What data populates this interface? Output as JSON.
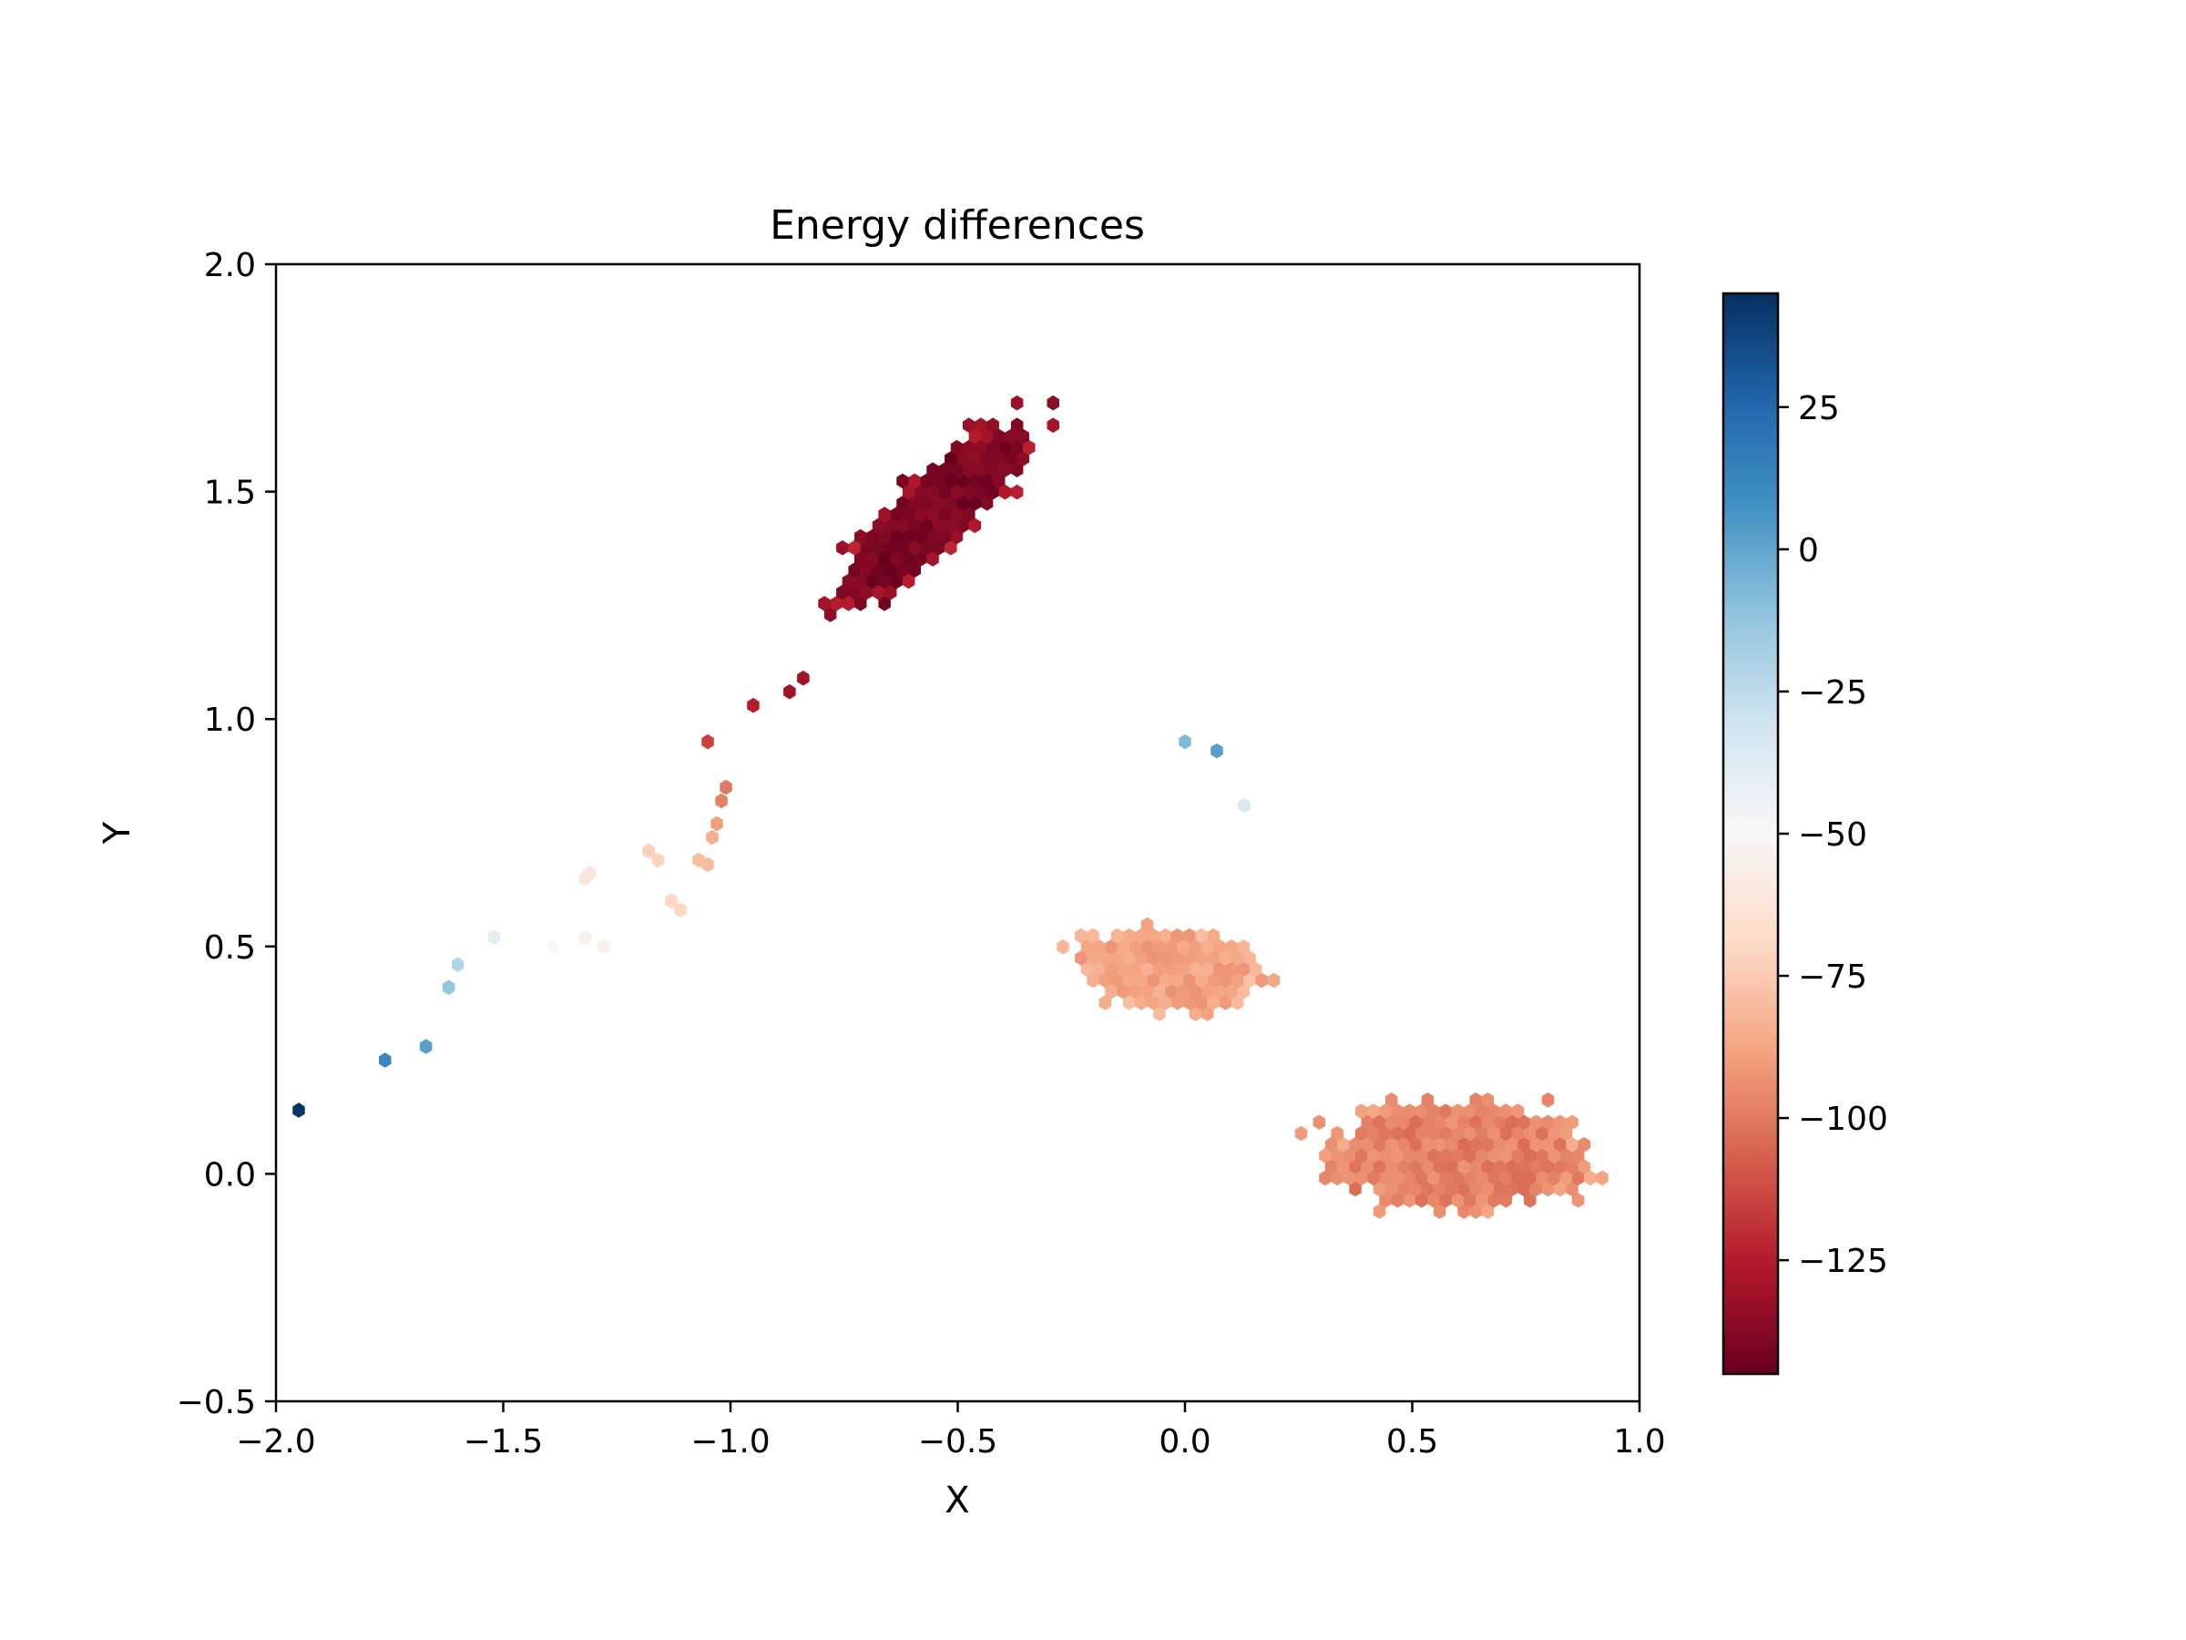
{
  "chart_data": {
    "type": "hexbin",
    "title": "Energy differences",
    "xlabel": "X",
    "ylabel": "Y",
    "xlim": [
      -2.0,
      1.0
    ],
    "ylim": [
      -0.5,
      2.0
    ],
    "xticks": [
      "−2.0",
      "−1.5",
      "−1.0",
      "−0.5",
      "0.0",
      "0.5",
      "1.0"
    ],
    "yticks": [
      "−0.5",
      "0.0",
      "0.5",
      "1.0",
      "1.5",
      "2.0"
    ],
    "colorbar": {
      "colormap": "RdBu",
      "vmin": -145,
      "vmax": 45,
      "ticks": [
        "25",
        "0",
        "−25",
        "−50",
        "−75",
        "−100",
        "−125"
      ],
      "tick_values": [
        25,
        0,
        -25,
        -50,
        -75,
        -100,
        -125
      ]
    },
    "clusters": [
      {
        "name": "upper-left",
        "center": [
          -0.55,
          1.45
        ],
        "value": -138
      },
      {
        "name": "middle",
        "center": [
          -0.05,
          0.45
        ],
        "value": -90
      },
      {
        "name": "lower-right",
        "center": [
          0.6,
          0.05
        ],
        "value": -97
      }
    ],
    "points": [
      {
        "x": -1.95,
        "y": 0.14,
        "v": 43
      },
      {
        "x": -1.76,
        "y": 0.25,
        "v": 12
      },
      {
        "x": -1.67,
        "y": 0.28,
        "v": 2
      },
      {
        "x": -1.62,
        "y": 0.41,
        "v": -12
      },
      {
        "x": -1.6,
        "y": 0.46,
        "v": -22
      },
      {
        "x": -1.52,
        "y": 0.52,
        "v": -40
      },
      {
        "x": -1.39,
        "y": 0.5,
        "v": -50
      },
      {
        "x": -1.32,
        "y": 0.52,
        "v": -55
      },
      {
        "x": -1.28,
        "y": 0.5,
        "v": -55
      },
      {
        "x": -1.32,
        "y": 0.65,
        "v": -62
      },
      {
        "x": -1.31,
        "y": 0.66,
        "v": -62
      },
      {
        "x": -1.18,
        "y": 0.71,
        "v": -72
      },
      {
        "x": -1.16,
        "y": 0.69,
        "v": -72
      },
      {
        "x": -1.13,
        "y": 0.6,
        "v": -70
      },
      {
        "x": -1.11,
        "y": 0.58,
        "v": -70
      },
      {
        "x": -1.07,
        "y": 0.69,
        "v": -80
      },
      {
        "x": -1.05,
        "y": 0.68,
        "v": -80
      },
      {
        "x": -1.04,
        "y": 0.74,
        "v": -85
      },
      {
        "x": -1.03,
        "y": 0.77,
        "v": -90
      },
      {
        "x": -1.02,
        "y": 0.82,
        "v": -98
      },
      {
        "x": -1.01,
        "y": 0.85,
        "v": -100
      },
      {
        "x": -1.05,
        "y": 0.95,
        "v": -115
      },
      {
        "x": -0.95,
        "y": 1.03,
        "v": -125
      },
      {
        "x": -0.87,
        "y": 1.06,
        "v": -130
      },
      {
        "x": -0.84,
        "y": 1.09,
        "v": -130
      },
      {
        "x": 0.0,
        "y": 0.95,
        "v": -8
      },
      {
        "x": 0.07,
        "y": 0.93,
        "v": 3
      },
      {
        "x": 0.13,
        "y": 0.81,
        "v": -35
      }
    ]
  }
}
